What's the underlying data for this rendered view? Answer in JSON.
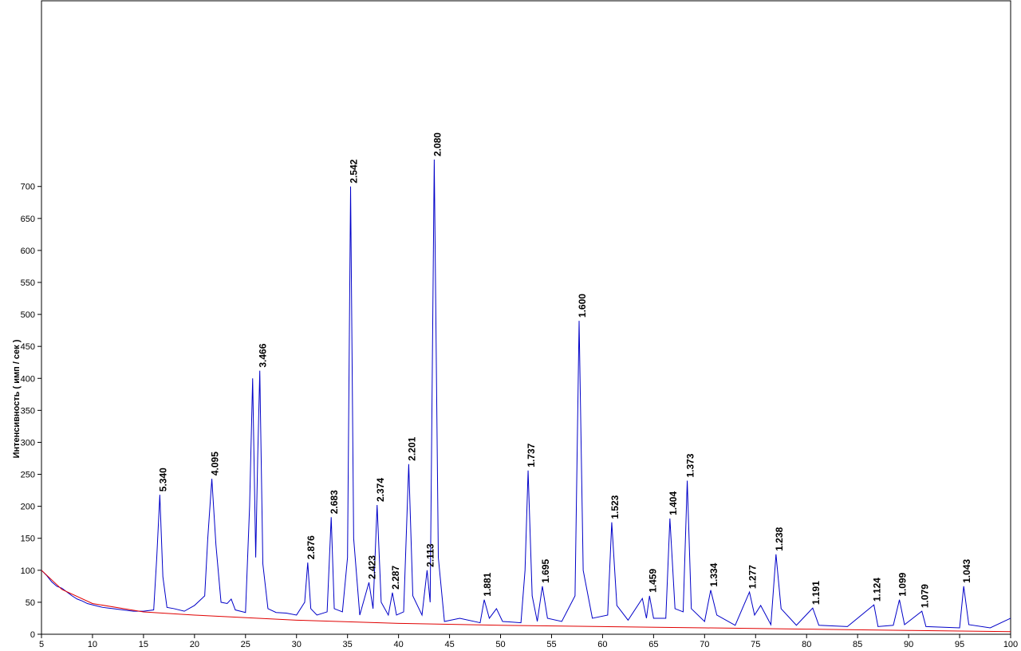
{
  "chart_data": {
    "type": "line",
    "y_label": "Интенсивность ( имп / сек )",
    "xlim": [
      5,
      100
    ],
    "xticks": [
      5,
      10,
      15,
      20,
      25,
      30,
      35,
      40,
      45,
      50,
      55,
      60,
      65,
      70,
      75,
      80,
      85,
      90,
      95,
      100
    ],
    "ylim": [
      0,
      989
    ],
    "yticks": [
      0,
      50,
      100,
      150,
      200,
      250,
      300,
      350,
      400,
      450,
      500,
      550,
      600,
      650,
      700
    ],
    "series": [
      {
        "color": "#0000c8",
        "x": [
          5,
          5.5,
          6,
          6.5,
          7,
          7.5,
          8,
          8.5,
          9,
          9.5,
          10,
          10.5,
          11,
          12,
          13,
          14,
          15,
          16,
          16.3,
          16.6,
          16.9,
          17.3,
          18,
          19,
          20,
          21,
          21.3,
          21.7,
          22.1,
          22.6,
          23.2,
          23.6,
          24,
          25,
          25.4,
          25.7,
          26.0,
          26.2,
          26.4,
          26.7,
          27.2,
          28,
          29,
          30,
          30.8,
          31.1,
          31.4,
          32,
          33,
          33.4,
          33.7,
          34.5,
          35.0,
          35.3,
          35.6,
          36.2,
          37.1,
          37.5,
          37.9,
          38.3,
          39.0,
          39.4,
          39.8,
          40.5,
          41.0,
          41.4,
          42.3,
          42.8,
          43.1,
          43.5,
          43.9,
          44.5,
          46,
          48,
          48.4,
          48.9,
          49.6,
          50.2,
          52,
          52.4,
          52.7,
          53.1,
          53.6,
          54.1,
          54.6,
          56,
          57.3,
          57.7,
          58.1,
          59,
          60.5,
          60.9,
          61.4,
          62.5,
          63.9,
          64.3,
          64.6,
          65,
          66.2,
          66.6,
          67.1,
          67.9,
          68.3,
          68.7,
          70,
          70.6,
          71.2,
          73,
          74.4,
          74.9,
          75.5,
          76.5,
          77.0,
          77.5,
          79,
          80.6,
          81.2,
          84,
          86.6,
          87,
          88.5,
          89.1,
          89.6,
          91.3,
          91.7,
          95,
          95.4,
          95.9,
          98,
          100
        ],
        "values": [
          100,
          92,
          82,
          75,
          72,
          66,
          60,
          55,
          52,
          48,
          46,
          44,
          42,
          40,
          38,
          36,
          36,
          38,
          120,
          218,
          90,
          42,
          40,
          36,
          45,
          60,
          150,
          243,
          140,
          50,
          48,
          55,
          38,
          34,
          200,
          400,
          120,
          280,
          412,
          110,
          40,
          34,
          33,
          30,
          50,
          112,
          40,
          30,
          35,
          183,
          40,
          35,
          120,
          700,
          150,
          30,
          81,
          40,
          202,
          50,
          30,
          65,
          30,
          35,
          266,
          60,
          30,
          100,
          50,
          742,
          120,
          20,
          25,
          18,
          54,
          25,
          40,
          20,
          18,
          100,
          256,
          60,
          20,
          75,
          25,
          20,
          60,
          490,
          100,
          25,
          30,
          175,
          45,
          22,
          56,
          25,
          60,
          25,
          25,
          181,
          40,
          35,
          240,
          40,
          20,
          69,
          30,
          14,
          66,
          30,
          45,
          15,
          125,
          40,
          14,
          41,
          14,
          12,
          46,
          12,
          14,
          54,
          15,
          36,
          12,
          10,
          75,
          15,
          10,
          25
        ]
      },
      {
        "color": "#e00000",
        "x": [
          5,
          7,
          10,
          15,
          20,
          30,
          40,
          50,
          60,
          70,
          80,
          90,
          100
        ],
        "values": [
          100,
          70,
          48,
          35,
          30,
          22,
          17,
          14,
          12,
          10,
          8,
          6,
          4
        ]
      }
    ],
    "annotations": [
      {
        "text": "5.340",
        "x": 16.6,
        "y": 218
      },
      {
        "text": "4.095",
        "x": 21.7,
        "y": 243
      },
      {
        "text": "3.466",
        "x": 26.4,
        "y": 412
      },
      {
        "text": "2.876",
        "x": 31.1,
        "y": 112
      },
      {
        "text": "2.683",
        "x": 33.4,
        "y": 183
      },
      {
        "text": "2.542",
        "x": 35.3,
        "y": 700
      },
      {
        "text": "2.423",
        "x": 37.1,
        "y": 81
      },
      {
        "text": "2.374",
        "x": 37.9,
        "y": 202
      },
      {
        "text": "2.287",
        "x": 39.4,
        "y": 65
      },
      {
        "text": "2.201",
        "x": 41.0,
        "y": 266
      },
      {
        "text": "2.113",
        "x": 42.8,
        "y": 100
      },
      {
        "text": "2.080",
        "x": 43.5,
        "y": 742
      },
      {
        "text": "1.881",
        "x": 48.4,
        "y": 54
      },
      {
        "text": "1.737",
        "x": 52.7,
        "y": 256
      },
      {
        "text": "1.695",
        "x": 54.1,
        "y": 75
      },
      {
        "text": "1.600",
        "x": 57.7,
        "y": 490
      },
      {
        "text": "1.523",
        "x": 60.9,
        "y": 175
      },
      {
        "text": "1.459",
        "x": 64.6,
        "y": 60
      },
      {
        "text": "1.404",
        "x": 66.6,
        "y": 181
      },
      {
        "text": "1.373",
        "x": 68.3,
        "y": 240
      },
      {
        "text": "1.334",
        "x": 70.6,
        "y": 69
      },
      {
        "text": "1.277",
        "x": 74.4,
        "y": 66
      },
      {
        "text": "1.238",
        "x": 77.0,
        "y": 125
      },
      {
        "text": "1.191",
        "x": 80.6,
        "y": 41
      },
      {
        "text": "1.124",
        "x": 86.6,
        "y": 46
      },
      {
        "text": "1.099",
        "x": 89.1,
        "y": 54
      },
      {
        "text": "1.079",
        "x": 91.3,
        "y": 36
      },
      {
        "text": "1.043",
        "x": 95.4,
        "y": 75
      }
    ]
  }
}
